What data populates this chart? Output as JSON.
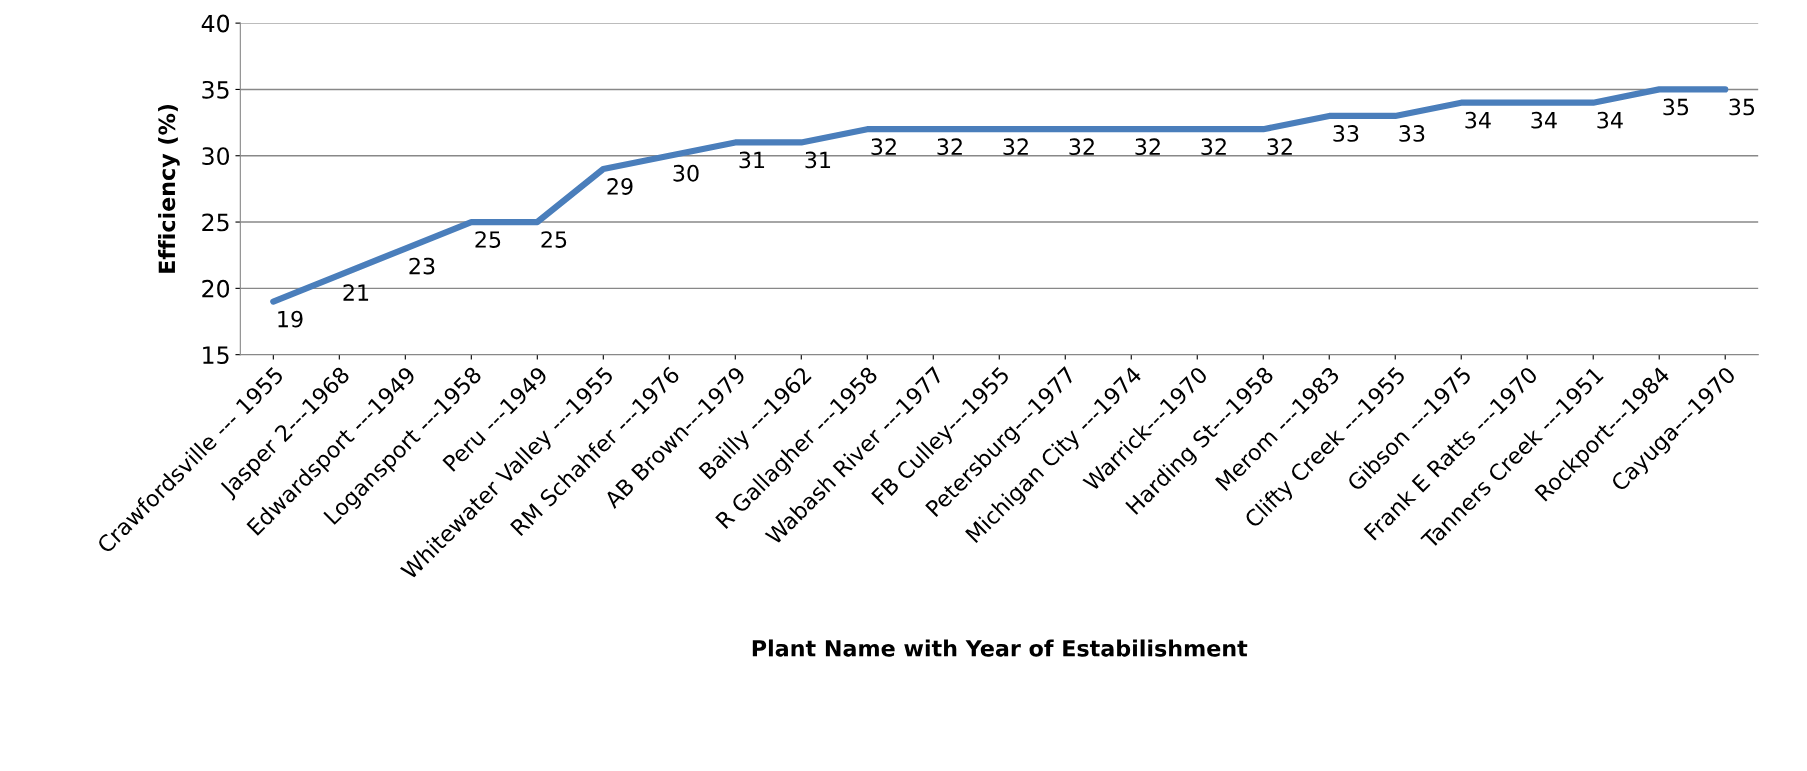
{
  "chart_data": {
    "type": "line",
    "xlabel": "Plant Name with Year of Estabilishment",
    "ylabel": "Efficiency (%)",
    "categories": [
      "Crawfordsville --- 1955",
      "Jasper 2---1968",
      "Edwardsport ---1949",
      "Logansport ---1958",
      "Peru ---1949",
      "Whitewater Valley ---1955",
      "RM Schahfer ---1976",
      "AB Brown---1979",
      "Bailly ---1962",
      "R Gallagher ---1958",
      "Wabash River ---1977",
      "FB Culley---1955",
      "Petersburg---1977",
      "Michigan City ---1974",
      "Warrick---1970",
      "Harding St---1958",
      "Merom ---1983",
      "Clifty Creek ---1955",
      "Gibson ---1975",
      "Frank E Ratts ---1970",
      "Tanners Creek ---1951",
      "Rockport---1984",
      "Cayuga---1970"
    ],
    "series": [
      {
        "color": "#4a7ebb",
        "values": [
          19,
          21,
          23,
          25,
          25,
          29,
          30,
          31,
          31,
          32,
          32,
          32,
          32,
          32,
          32,
          32,
          33,
          33,
          34,
          34,
          34,
          35,
          35
        ]
      }
    ],
    "ylim": [
      15,
      40
    ],
    "yticks": [
      15,
      20,
      25,
      30,
      35,
      40
    ],
    "grid": "y",
    "data_labels": true,
    "line_style": "solid",
    "marker": "none"
  }
}
